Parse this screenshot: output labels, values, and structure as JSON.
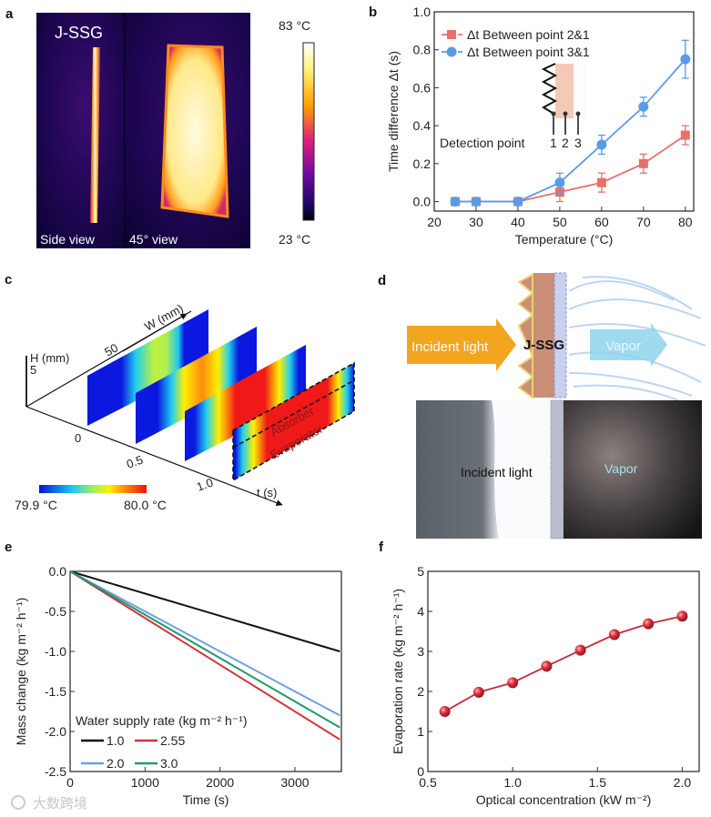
{
  "panel_labels": {
    "a": "a",
    "b": "b",
    "c": "c",
    "d": "d",
    "e": "e",
    "f": "f"
  },
  "panel_a": {
    "sample_label": "J-SSG",
    "side_view_label": "Side view",
    "angle_view_label": "45° view",
    "colorbar_max": "83 °C",
    "colorbar_min": "23 °C"
  },
  "panel_c": {
    "h_axis_label": "H (mm)",
    "h_tick": "5",
    "w_axis_label": "W (mm)",
    "w_tick": "50",
    "t_axis_label": "t (s)",
    "t_ticks": [
      "0",
      "0.5",
      "1.0"
    ],
    "absorber_label": "Absorber",
    "evaporator_label": "Evaporator",
    "colorbar_min": "79.9 °C",
    "colorbar_max": "80.0 °C"
  },
  "panel_d": {
    "incident_light_label": "Incident light",
    "sample_label": "J-SSG",
    "vapor_label": "Vapor",
    "photo_incident_label": "Incident light",
    "photo_vapor_label": "Vapor"
  },
  "watermark": "大数跨境",
  "colors": {
    "red_series": "#e8706a",
    "blue_series": "#5b9be6",
    "f_series": "#c8283a",
    "e_1": "#111111",
    "e_2": "#6fa0e0",
    "e_255": "#d0333a",
    "e_3": "#1f9a6e"
  },
  "chart_data": [
    {
      "id": "b",
      "type": "line",
      "xlabel": "Temperature (°C)",
      "ylabel": "Time difference Δt (s)",
      "xlim": [
        20,
        82
      ],
      "ylim": [
        -0.05,
        1.0
      ],
      "xticks": [
        20,
        30,
        40,
        50,
        60,
        70,
        80
      ],
      "xtick_labels": [
        "20",
        "30",
        "40",
        "50",
        "60",
        "70",
        "80"
      ],
      "yticks": [
        0,
        0.2,
        0.4,
        0.6,
        0.8,
        1.0
      ],
      "ytick_labels": [
        "0.0",
        "0.2",
        "0.4",
        "0.6",
        "0.8",
        "1.0"
      ],
      "legend_position": "top-left",
      "inset_label": "Detection point",
      "inset_points": [
        "1",
        "2",
        "3"
      ],
      "x": [
        25,
        30,
        40,
        50,
        60,
        70,
        80
      ],
      "series": [
        {
          "name": "Δt Between point 2&1",
          "marker": "square",
          "color": "#e8706a",
          "values": [
            0,
            0,
            0,
            0.05,
            0.1,
            0.2,
            0.35
          ],
          "errors": [
            0,
            0,
            0,
            0.05,
            0.05,
            0.05,
            0.05
          ]
        },
        {
          "name": "Δt Between point 3&1",
          "marker": "circle",
          "color": "#5b9be6",
          "values": [
            0,
            0,
            0,
            0.1,
            0.3,
            0.5,
            0.75
          ],
          "errors": [
            0,
            0,
            0,
            0.05,
            0.05,
            0.05,
            0.1
          ]
        }
      ]
    },
    {
      "id": "e",
      "type": "line",
      "xlabel": "Time (s)",
      "ylabel": "Mass change (kg m⁻² h⁻¹)",
      "xlim": [
        0,
        3620
      ],
      "ylim": [
        -2.5,
        0
      ],
      "xticks": [
        0,
        1000,
        2000,
        3000
      ],
      "xtick_labels": [
        "0",
        "1000",
        "2000",
        "3000"
      ],
      "yticks": [
        0,
        -0.5,
        -1.0,
        -1.5,
        -2.0,
        -2.5
      ],
      "ytick_labels": [
        "0.0",
        "-0.5",
        "-1.0",
        "-1.5",
        "-2.0",
        "-2.5"
      ],
      "legend_title": "Water supply rate (kg m⁻² h⁻¹)",
      "legend_position": "bottom-left",
      "x": [
        0,
        3600
      ],
      "series": [
        {
          "name": "1.0",
          "color": "#111111",
          "values": [
            0,
            -1.0
          ]
        },
        {
          "name": "2.55",
          "color": "#d0333a",
          "values": [
            0,
            -2.1
          ]
        },
        {
          "name": "2.0",
          "color": "#6fa0e0",
          "values": [
            0,
            -1.8
          ]
        },
        {
          "name": "3.0",
          "color": "#1f9a6e",
          "values": [
            0,
            -1.95
          ]
        }
      ]
    },
    {
      "id": "f",
      "type": "line",
      "xlabel": "Optical concentration (kW m⁻²)",
      "ylabel": "Evaporation rate (kg m⁻² h⁻¹)",
      "xlim": [
        0.5,
        2.1
      ],
      "ylim": [
        0,
        5
      ],
      "xticks": [
        0.5,
        1.0,
        1.5,
        2.0
      ],
      "xtick_labels": [
        "0.5",
        "1.0",
        "1.5",
        "2.0"
      ],
      "yticks": [
        0,
        1,
        2,
        3,
        4,
        5
      ],
      "ytick_labels": [
        "0",
        "1",
        "2",
        "3",
        "4",
        "5"
      ],
      "x": [
        0.6,
        0.8,
        1.0,
        1.2,
        1.4,
        1.6,
        1.8,
        2.0
      ],
      "series": [
        {
          "name": "Evaporation rate",
          "marker": "sphere",
          "color": "#c8283a",
          "values": [
            1.5,
            1.98,
            2.22,
            2.63,
            3.03,
            3.42,
            3.69,
            3.88
          ]
        }
      ]
    }
  ]
}
